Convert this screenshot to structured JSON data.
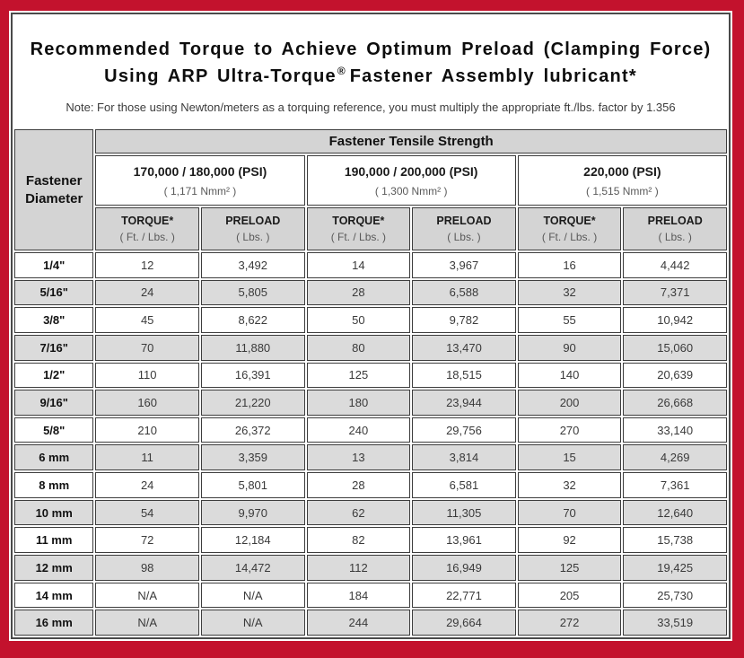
{
  "colors": {
    "frame_red": "#C3122D",
    "border_dark": "#4A4A4A",
    "header_gray": "#D4D4D4",
    "row_gray": "#DBDBDB"
  },
  "title": {
    "line1": "Recommended Torque to Achieve Optimum Preload (Clamping Force)",
    "line2_pre": "Using ARP Ultra-Torque",
    "line2_sup": "®",
    "line2_post": "Fastener Assembly lubricant*",
    "note": "Note: For those using Newton/meters as a torquing reference, you must multiply the appropriate ft./lbs. factor by 1.356"
  },
  "table": {
    "corner_header": "Fastener Diameter",
    "tensile_header": "Fastener Tensile Strength",
    "groups": [
      {
        "psi": "170,000 / 180,000 (PSI)",
        "nmm": "( 1,171 Nmm² )"
      },
      {
        "psi": "190,000 / 200,000 (PSI)",
        "nmm": "( 1,300 Nmm² )"
      },
      {
        "psi": "220,000 (PSI)",
        "nmm": "( 1,515 Nmm² )"
      }
    ],
    "col_headers": {
      "torque": "TORQUE*",
      "torque_sub": "( Ft. / Lbs. )",
      "preload": "PRELOAD",
      "preload_sub": "( Lbs. )"
    },
    "rows": [
      {
        "dia": "1/4\"",
        "values": [
          "12",
          "3,492",
          "14",
          "3,967",
          "16",
          "4,442"
        ]
      },
      {
        "dia": "5/16\"",
        "values": [
          "24",
          "5,805",
          "28",
          "6,588",
          "32",
          "7,371"
        ]
      },
      {
        "dia": "3/8\"",
        "values": [
          "45",
          "8,622",
          "50",
          "9,782",
          "55",
          "10,942"
        ]
      },
      {
        "dia": "7/16\"",
        "values": [
          "70",
          "11,880",
          "80",
          "13,470",
          "90",
          "15,060"
        ]
      },
      {
        "dia": "1/2\"",
        "values": [
          "110",
          "16,391",
          "125",
          "18,515",
          "140",
          "20,639"
        ]
      },
      {
        "dia": "9/16\"",
        "values": [
          "160",
          "21,220",
          "180",
          "23,944",
          "200",
          "26,668"
        ]
      },
      {
        "dia": "5/8\"",
        "values": [
          "210",
          "26,372",
          "240",
          "29,756",
          "270",
          "33,140"
        ]
      },
      {
        "dia": "6 mm",
        "values": [
          "11",
          "3,359",
          "13",
          "3,814",
          "15",
          "4,269"
        ]
      },
      {
        "dia": "8 mm",
        "values": [
          "24",
          "5,801",
          "28",
          "6,581",
          "32",
          "7,361"
        ]
      },
      {
        "dia": "10 mm",
        "values": [
          "54",
          "9,970",
          "62",
          "11,305",
          "70",
          "12,640"
        ]
      },
      {
        "dia": "11 mm",
        "values": [
          "72",
          "12,184",
          "82",
          "13,961",
          "92",
          "15,738"
        ]
      },
      {
        "dia": "12 mm",
        "values": [
          "98",
          "14,472",
          "112",
          "16,949",
          "125",
          "19,425"
        ]
      },
      {
        "dia": "14 mm",
        "values": [
          "N/A",
          "N/A",
          "184",
          "22,771",
          "205",
          "25,730"
        ]
      },
      {
        "dia": "16 mm",
        "values": [
          "N/A",
          "N/A",
          "244",
          "29,664",
          "272",
          "33,519"
        ]
      }
    ]
  }
}
